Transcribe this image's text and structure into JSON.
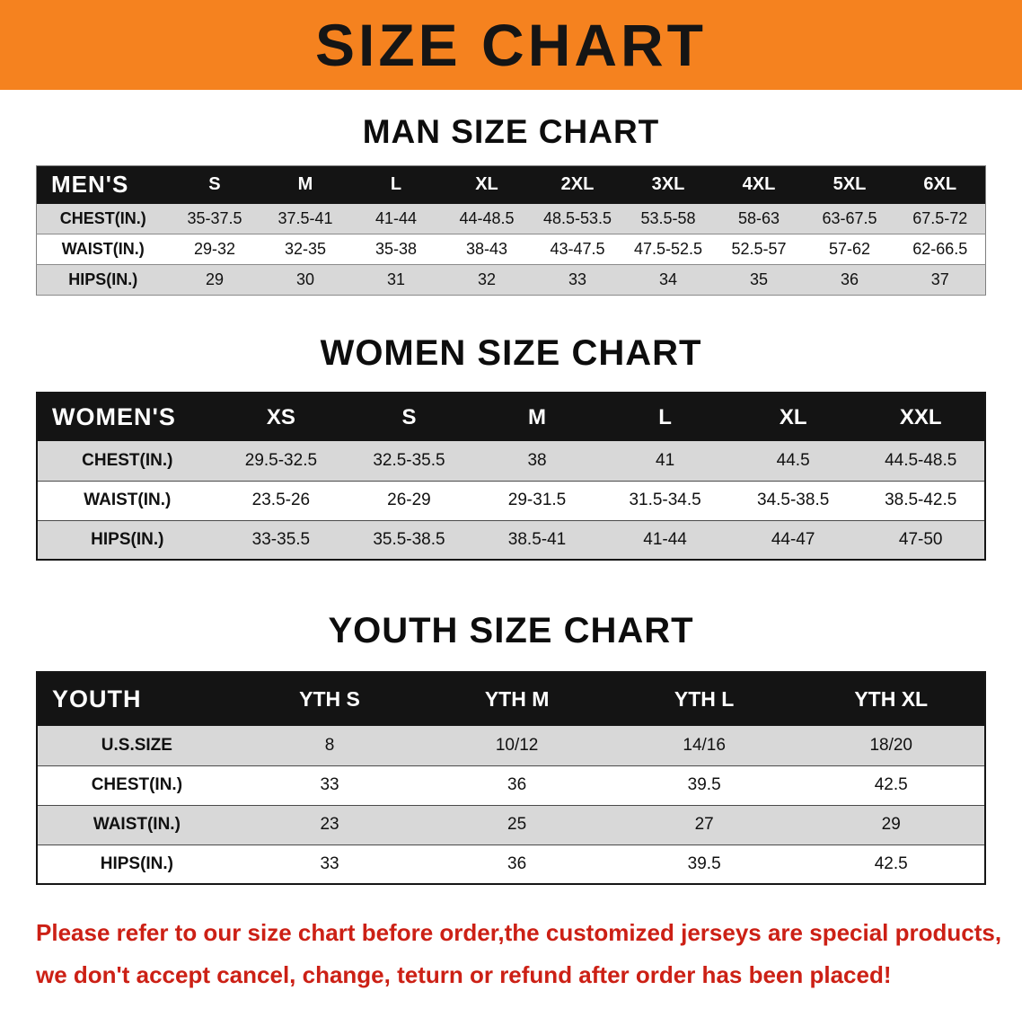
{
  "banner": {
    "title": "SIZE CHART"
  },
  "colors": {
    "banner_bg": "#f5821f",
    "header_bg": "#141414",
    "row_shade": "#d8d8d8",
    "note_red": "#cc2015"
  },
  "sections": [
    {
      "heading": "MAN SIZE CHART",
      "corner_label": "MEN'S",
      "columns": [
        "S",
        "M",
        "L",
        "XL",
        "2XL",
        "3XL",
        "4XL",
        "5XL",
        "6XL"
      ],
      "rows": [
        {
          "label": "CHEST(IN.)",
          "values": [
            "35-37.5",
            "37.5-41",
            "41-44",
            "44-48.5",
            "48.5-53.5",
            "53.5-58",
            "58-63",
            "63-67.5",
            "67.5-72"
          ]
        },
        {
          "label": "WAIST(IN.)",
          "values": [
            "29-32",
            "32-35",
            "35-38",
            "38-43",
            "43-47.5",
            "47.5-52.5",
            "52.5-57",
            "57-62",
            "62-66.5"
          ]
        },
        {
          "label": "HIPS(IN.)",
          "values": [
            "29",
            "30",
            "31",
            "32",
            "33",
            "34",
            "35",
            "36",
            "37"
          ]
        }
      ]
    },
    {
      "heading": "WOMEN SIZE CHART",
      "corner_label": "WOMEN'S",
      "columns": [
        "XS",
        "S",
        "M",
        "L",
        "XL",
        "XXL"
      ],
      "rows": [
        {
          "label": "CHEST(IN.)",
          "values": [
            "29.5-32.5",
            "32.5-35.5",
            "38",
            "41",
            "44.5",
            "44.5-48.5"
          ]
        },
        {
          "label": "WAIST(IN.)",
          "values": [
            "23.5-26",
            "26-29",
            "29-31.5",
            "31.5-34.5",
            "34.5-38.5",
            "38.5-42.5"
          ]
        },
        {
          "label": "HIPS(IN.)",
          "values": [
            "33-35.5",
            "35.5-38.5",
            "38.5-41",
            "41-44",
            "44-47",
            "47-50"
          ]
        }
      ]
    },
    {
      "heading": "YOUTH SIZE CHART",
      "corner_label": "YOUTH",
      "columns": [
        "YTH S",
        "YTH M",
        "YTH L",
        "YTH XL"
      ],
      "rows": [
        {
          "label": "U.S.SIZE",
          "values": [
            "8",
            "10/12",
            "14/16",
            "18/20"
          ]
        },
        {
          "label": "CHEST(IN.)",
          "values": [
            "33",
            "36",
            "39.5",
            "42.5"
          ]
        },
        {
          "label": "WAIST(IN.)",
          "values": [
            "23",
            "25",
            "27",
            "29"
          ]
        },
        {
          "label": "HIPS(IN.)",
          "values": [
            "33",
            "36",
            "39.5",
            "42.5"
          ]
        }
      ]
    }
  ],
  "note": {
    "lines": [
      "Please refer to our size chart before order,the customized jerseys are special products,",
      "we don't accept cancel, change, teturn or refund after order has been placed!"
    ]
  }
}
